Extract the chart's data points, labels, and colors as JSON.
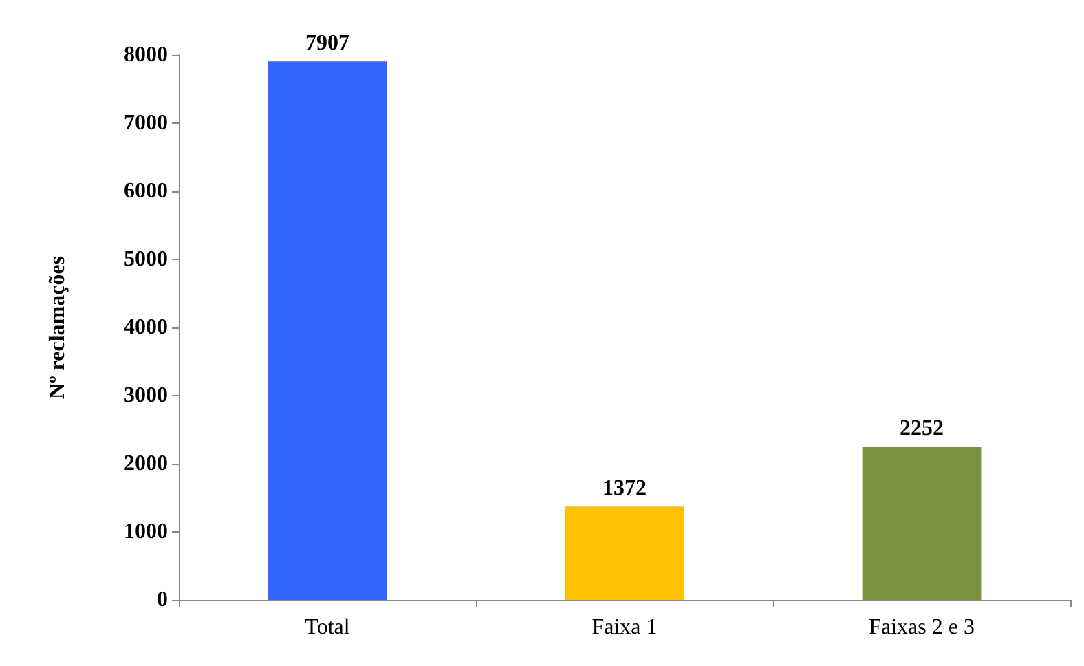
{
  "chart_data": {
    "type": "bar",
    "ylabel": "Nº reclamações",
    "categories": [
      "Total",
      "Faixa 1",
      "Faixas 2 e 3"
    ],
    "values": [
      7907,
      1372,
      2252
    ],
    "colors": [
      "#3366ff",
      "#ffc000",
      "#77933c"
    ],
    "ylim": [
      0,
      8000
    ],
    "yticks": [
      0,
      1000,
      2000,
      3000,
      4000,
      5000,
      6000,
      7000,
      8000
    ],
    "grid": false,
    "data_labels": true
  }
}
